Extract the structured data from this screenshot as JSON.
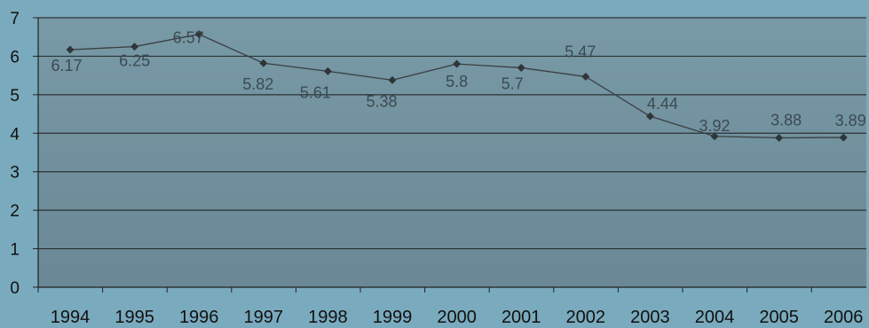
{
  "chart_data": {
    "type": "line",
    "title": "",
    "xlabel": "",
    "ylabel": "",
    "x": [
      "1994",
      "1995",
      "1996",
      "1997",
      "1998",
      "1999",
      "2000",
      "2001",
      "2002",
      "2003",
      "2004",
      "2005",
      "2006"
    ],
    "series": [
      {
        "values": [
          6.17,
          6.25,
          6.57,
          5.82,
          5.61,
          5.38,
          5.8,
          5.7,
          5.47,
          4.44,
          3.92,
          3.88,
          3.89
        ],
        "data_labels": [
          "6.17",
          "6.25",
          "6.57",
          "5.82",
          "5.61",
          "5.38",
          "5.8",
          "5.7",
          "5.47",
          "4.44",
          "3.92",
          "3.88",
          "3.89"
        ]
      }
    ],
    "yticks": [
      "0",
      "1",
      "2",
      "3",
      "4",
      "5",
      "6",
      "7"
    ],
    "ylim": [
      0,
      7
    ],
    "grid": true,
    "legend": "none",
    "colors": {
      "background": "#7aaabd",
      "plot_area": "#6f8e9a",
      "line": "#3a3f42",
      "marker": "#2f3538",
      "gridline": "#2b3236",
      "label": "#3c4a52"
    }
  }
}
